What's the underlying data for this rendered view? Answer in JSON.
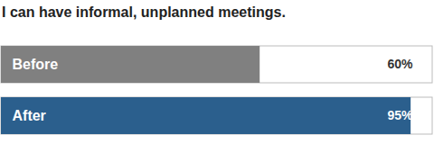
{
  "chart_data": {
    "type": "bar",
    "orientation": "horizontal",
    "title": "I can have informal, unplanned meetings.",
    "categories": [
      "Before",
      "After"
    ],
    "values": [
      60,
      95
    ],
    "value_labels": [
      "60%",
      "95%"
    ],
    "colors": [
      "#808080",
      "#2b5f8d"
    ],
    "xlim": [
      0,
      100
    ],
    "data_labels": true,
    "tick_labels": false
  }
}
